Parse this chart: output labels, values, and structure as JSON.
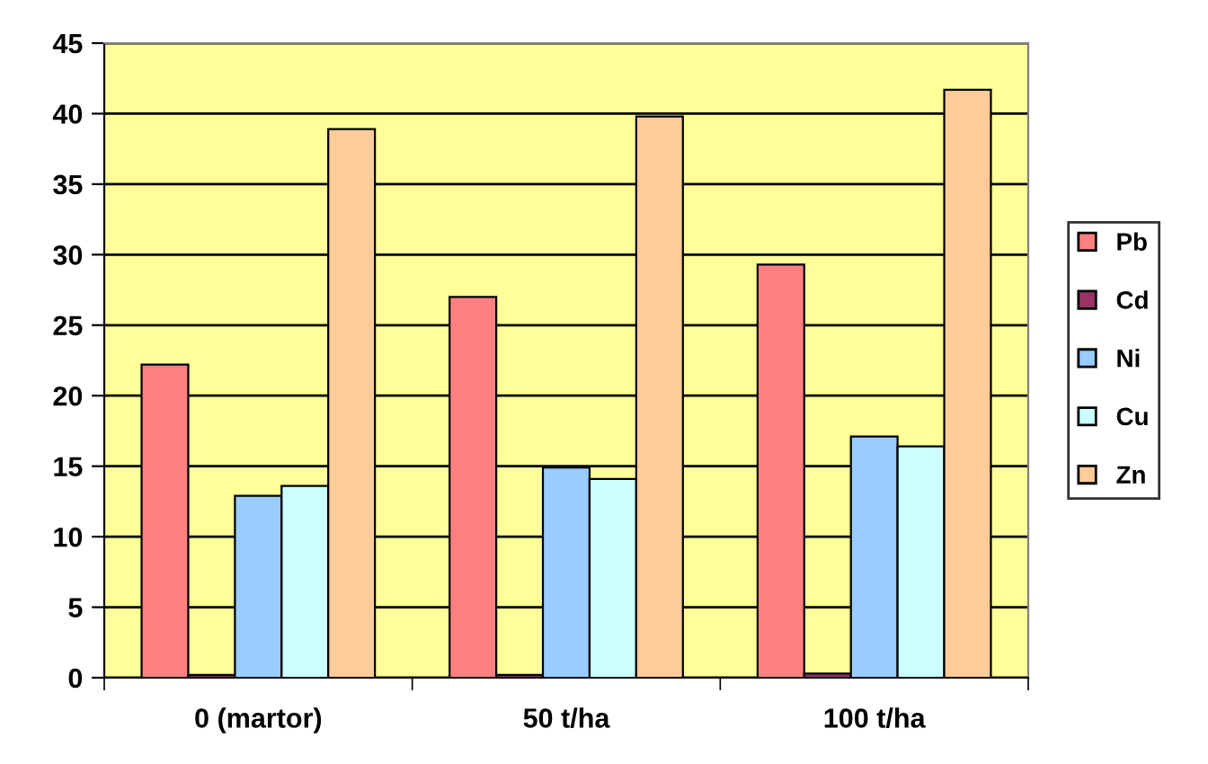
{
  "chart_data": {
    "type": "bar",
    "categories": [
      "0 (martor)",
      "50 t/ha",
      "100 t/ha"
    ],
    "series": [
      {
        "name": "Pb",
        "color": "#ff8080",
        "values": [
          22.2,
          27.0,
          29.3
        ]
      },
      {
        "name": "Cd",
        "color": "#993366",
        "values": [
          0.2,
          0.2,
          0.3
        ]
      },
      {
        "name": "Ni",
        "color": "#99ccff",
        "values": [
          12.9,
          14.9,
          17.1
        ]
      },
      {
        "name": "Cu",
        "color": "#ccffff",
        "values": [
          13.6,
          14.1,
          16.4
        ]
      },
      {
        "name": "Zn",
        "color": "#ffcc99",
        "values": [
          38.9,
          39.8,
          41.7
        ]
      }
    ],
    "ylim": [
      0,
      45
    ],
    "yticks": [
      0,
      5,
      10,
      15,
      20,
      25,
      30,
      35,
      40,
      45
    ],
    "grid": "y",
    "legend": "right"
  }
}
